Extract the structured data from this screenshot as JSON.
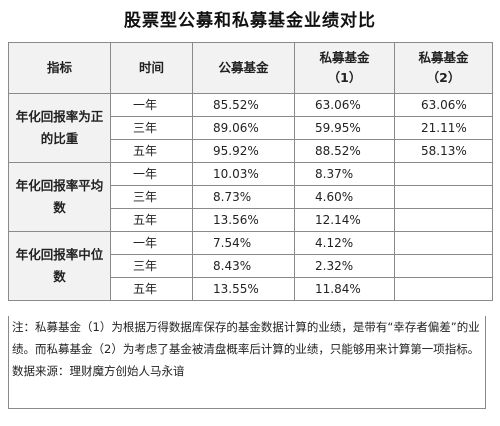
{
  "title": "股票型公募和私募基金业绩对比",
  "table": {
    "headers": {
      "indicator": "指标",
      "period": "时间",
      "public": "公募基金",
      "private1_line1": "私募基金",
      "private1_line2": "（1）",
      "private2_line1": "私募基金",
      "private2_line2": "（2）"
    },
    "groups": [
      {
        "label": "年化回报率为正的比重",
        "rows": [
          {
            "period": "一年",
            "public": "85.52%",
            "private1": "63.06%",
            "private2": "63.06%"
          },
          {
            "period": "三年",
            "public": "89.06%",
            "private1": "59.95%",
            "private2": "21.11%"
          },
          {
            "period": "五年",
            "public": "95.92%",
            "private1": "88.52%",
            "private2": "58.13%"
          }
        ]
      },
      {
        "label": "年化回报率平均数",
        "rows": [
          {
            "period": "一年",
            "public": "10.03%",
            "private1": "8.37%",
            "private2": ""
          },
          {
            "period": "三年",
            "public": "8.73%",
            "private1": "4.60%",
            "private2": ""
          },
          {
            "period": "五年",
            "public": "13.56%",
            "private1": "12.14%",
            "private2": ""
          }
        ]
      },
      {
        "label": "年化回报率中位数",
        "rows": [
          {
            "period": "一年",
            "public": "7.54%",
            "private1": "4.12%",
            "private2": ""
          },
          {
            "period": "三年",
            "public": "8.43%",
            "private1": "2.32%",
            "private2": ""
          },
          {
            "period": "五年",
            "public": "13.55%",
            "private1": "11.84%",
            "private2": ""
          }
        ]
      }
    ]
  },
  "notes": {
    "note": "注：私募基金（1）为根据万得数据库保存的基金数据计算的业绩，是带有“幸存者偏差”的业绩。而私募基金（2）为考虑了基金被清盘概率后计算的业绩，只能够用来计算第一项指标。",
    "source": "数据来源：理财魔方创始人马永谙"
  }
}
